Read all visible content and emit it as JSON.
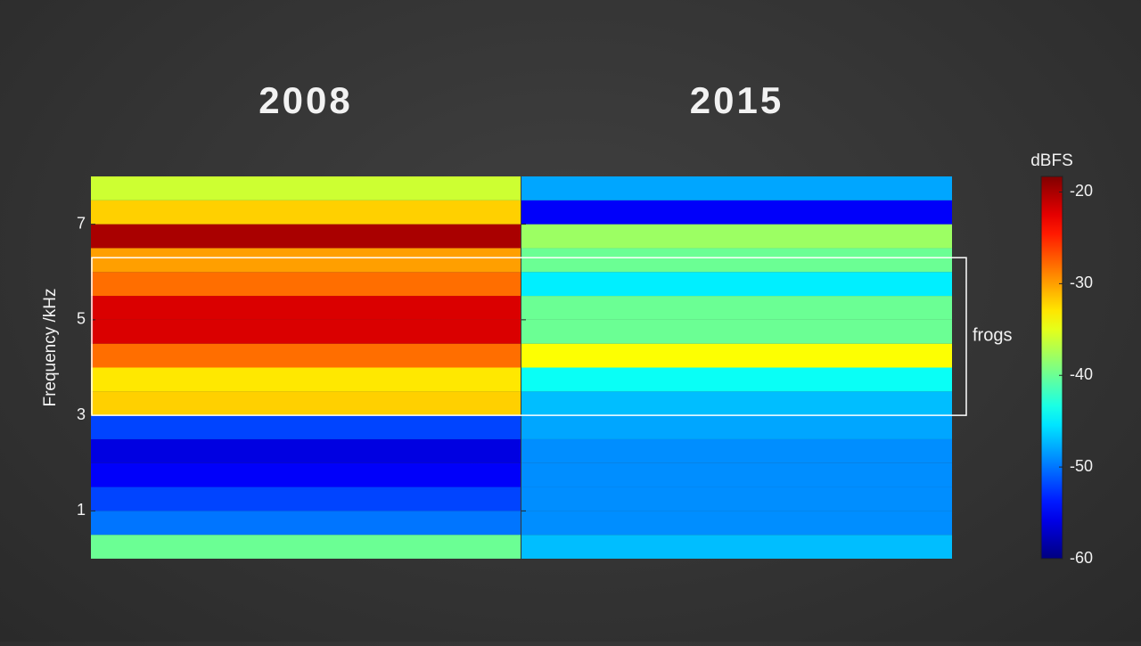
{
  "chart_data": {
    "type": "spectrogram",
    "panels": [
      {
        "title": "2008",
        "values": [
          -40,
          -50,
          -52,
          -55,
          -56,
          -52,
          -32,
          -33,
          -28,
          -22,
          -22,
          -28,
          -30,
          -20,
          -32,
          -36
        ]
      },
      {
        "title": "2015",
        "values": [
          -47,
          -49,
          -49,
          -49,
          -49,
          -48,
          -47,
          -44,
          -34,
          -40,
          -40,
          -45,
          -40,
          -38,
          -55,
          -48
        ]
      }
    ],
    "bins": [
      0,
      0.5,
      1,
      1.5,
      2,
      2.5,
      3,
      3.5,
      4,
      4.5,
      5,
      5.5,
      6,
      6.5,
      7,
      7.5,
      8
    ],
    "ylabel": "Frequency /kHz",
    "ylim": [
      0,
      8
    ],
    "yticks": [
      1,
      3,
      5,
      7
    ],
    "colorbar": {
      "label": "dBFS",
      "colormap": "jet",
      "clim": [
        -60,
        -18.3
      ],
      "ticks": [
        -20,
        -30,
        -40,
        -50,
        -60
      ]
    },
    "annotation": {
      "text": "frogs",
      "range": [
        3,
        6.3
      ]
    }
  }
}
